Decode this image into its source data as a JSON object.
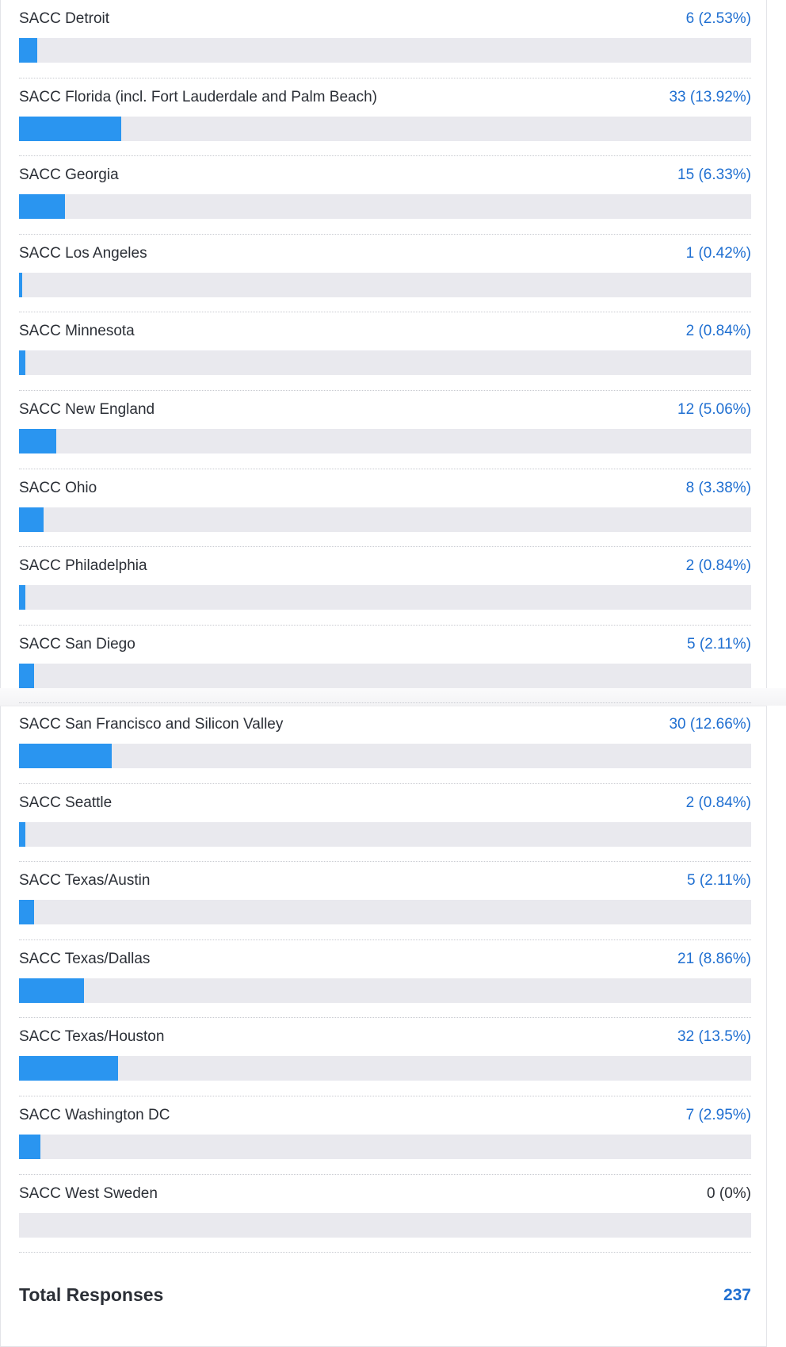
{
  "survey_results": {
    "rows": [
      {
        "label": "SACC Detroit",
        "count_text": "6 (2.53%)",
        "percent": 2.53
      },
      {
        "label": "SACC Florida (incl. Fort Lauderdale and Palm Beach)",
        "count_text": "33 (13.92%)",
        "percent": 13.92
      },
      {
        "label": "SACC Georgia",
        "count_text": "15 (6.33%)",
        "percent": 6.33
      },
      {
        "label": "SACC Los Angeles",
        "count_text": "1 (0.42%)",
        "percent": 0.42
      },
      {
        "label": "SACC Minnesota",
        "count_text": "2 (0.84%)",
        "percent": 0.84
      },
      {
        "label": "SACC New England",
        "count_text": "12 (5.06%)",
        "percent": 5.06
      },
      {
        "label": "SACC Ohio",
        "count_text": "8 (3.38%)",
        "percent": 3.38
      },
      {
        "label": "SACC Philadelphia",
        "count_text": "2 (0.84%)",
        "percent": 0.84
      },
      {
        "label": "SACC San Diego",
        "count_text": "5 (2.11%)",
        "percent": 2.11
      },
      {
        "label": "SACC San Francisco and Silicon Valley",
        "count_text": "30 (12.66%)",
        "percent": 12.66
      },
      {
        "label": "SACC Seattle",
        "count_text": "2 (0.84%)",
        "percent": 0.84
      },
      {
        "label": "SACC Texas/Austin",
        "count_text": "5 (2.11%)",
        "percent": 2.11
      },
      {
        "label": "SACC Texas/Dallas",
        "count_text": "21 (8.86%)",
        "percent": 8.86
      },
      {
        "label": "SACC Texas/Houston",
        "count_text": "32 (13.5%)",
        "percent": 13.5
      },
      {
        "label": "SACC Washington DC",
        "count_text": "7 (2.95%)",
        "percent": 2.95
      },
      {
        "label": "SACC West Sweden",
        "count_text": "0 (0%)",
        "percent": 0
      }
    ],
    "total_label": "Total Responses",
    "total_value": "237"
  },
  "colors": {
    "bar_fill": "#2a95f0",
    "bar_track": "#e9e9ee",
    "count_link": "#1f6fd1",
    "text": "#2b2f36"
  }
}
